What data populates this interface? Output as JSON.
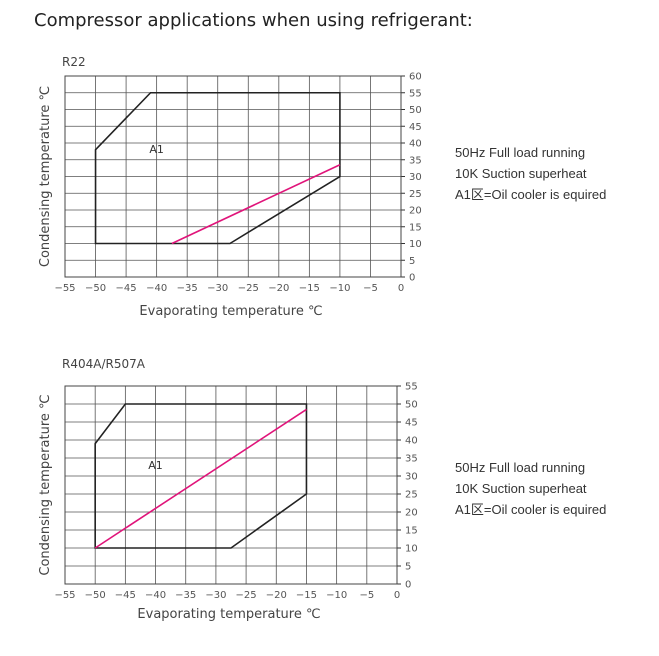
{
  "page": {
    "title": "Compressor applications when using refrigerant:"
  },
  "chart_data": [
    {
      "type": "line",
      "refrigerant": "R22",
      "xlabel": "Evaporating temperature ℃",
      "ylabel": "Condensing temperature ℃",
      "xlim": [
        -55,
        0
      ],
      "ylim": [
        0,
        60
      ],
      "xticks": [
        -55,
        -50,
        -45,
        -40,
        -35,
        -30,
        -25,
        -20,
        -15,
        -10,
        -5,
        0
      ],
      "yticks": [
        0,
        5,
        10,
        15,
        20,
        25,
        30,
        35,
        40,
        45,
        50,
        55,
        60
      ],
      "grid": true,
      "envelope": [
        [
          -50,
          10
        ],
        [
          -50,
          38
        ],
        [
          -41,
          55
        ],
        [
          -10,
          55
        ],
        [
          -10,
          30
        ],
        [
          -28,
          10
        ]
      ],
      "oil_cooler_line": [
        [
          -37.5,
          10
        ],
        [
          -10,
          33.5
        ]
      ],
      "region_label": "A1",
      "region_label_at": [
        -40,
        37
      ],
      "colors": {
        "envelope": "#222222",
        "oil_cooler_line": "#e0147a",
        "grid": "#555555"
      },
      "notes": [
        "50Hz Full load running",
        "10K Suction superheat",
        "A1区=Oil cooler is equired"
      ]
    },
    {
      "type": "line",
      "refrigerant": "R404A/R507A",
      "xlabel": "Evaporating temperature ℃",
      "ylabel": "Condensing temperature ℃",
      "xlim": [
        -55,
        0
      ],
      "ylim": [
        0,
        55
      ],
      "xticks": [
        -55,
        -50,
        -45,
        -40,
        -35,
        -30,
        -25,
        -20,
        -15,
        -10,
        -5,
        0
      ],
      "yticks": [
        0,
        5,
        10,
        15,
        20,
        25,
        30,
        35,
        40,
        45,
        50,
        55
      ],
      "grid": true,
      "envelope": [
        [
          -50,
          10
        ],
        [
          -50,
          39
        ],
        [
          -45,
          50
        ],
        [
          -15,
          50
        ],
        [
          -15,
          25
        ],
        [
          -27.5,
          10
        ]
      ],
      "oil_cooler_line": [
        [
          -50,
          10
        ],
        [
          -15,
          48.5
        ]
      ],
      "region_label": "A1",
      "region_label_at": [
        -40,
        32
      ],
      "colors": {
        "envelope": "#222222",
        "oil_cooler_line": "#e0147a",
        "grid": "#555555"
      },
      "notes": [
        "50Hz Full load running",
        "10K Suction superheat",
        "A1区=Oil cooler is equired"
      ]
    }
  ]
}
